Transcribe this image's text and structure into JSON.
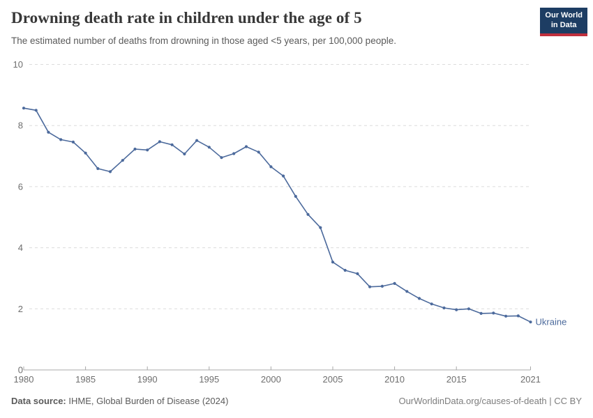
{
  "header": {
    "title": "Drowning death rate in children under the age of 5",
    "subtitle": "The estimated number of deaths from drowning in those aged <5 years, per 100,000 people.",
    "logo": {
      "line1": "Our World",
      "line2": "in Data",
      "bg_color": "#1d3d63",
      "accent_color": "#c0303d"
    }
  },
  "chart_data": {
    "type": "line",
    "title": "Drowning death rate in children under the age of 5",
    "subtitle": "The estimated number of deaths from drowning in those aged <5 years, per 100,000 people.",
    "xlabel": "",
    "ylabel": "",
    "xlim": [
      1980,
      2021
    ],
    "ylim": [
      0,
      10
    ],
    "x_ticks": [
      1980,
      1985,
      1990,
      1995,
      2000,
      2005,
      2010,
      2015,
      2021
    ],
    "y_ticks": [
      0,
      2,
      4,
      6,
      8,
      10
    ],
    "grid": "horizontal-dashed",
    "legend_position": "end-of-line",
    "colors": {
      "grid": "#dcdcdc",
      "axis": "#a8a8a8",
      "tick_text": "#6e6e6e"
    },
    "series": [
      {
        "name": "Ukraine",
        "color": "#4C6A9C",
        "x": [
          1980,
          1981,
          1982,
          1983,
          1984,
          1985,
          1986,
          1987,
          1988,
          1989,
          1990,
          1991,
          1992,
          1993,
          1994,
          1995,
          1996,
          1997,
          1998,
          1999,
          2000,
          2001,
          2002,
          2003,
          2004,
          2005,
          2006,
          2007,
          2008,
          2009,
          2010,
          2011,
          2012,
          2013,
          2014,
          2015,
          2016,
          2017,
          2018,
          2019,
          2020,
          2021
        ],
        "values": [
          8.57,
          8.5,
          7.78,
          7.54,
          7.46,
          7.1,
          6.59,
          6.49,
          6.86,
          7.23,
          7.2,
          7.47,
          7.37,
          7.07,
          7.51,
          7.29,
          6.95,
          7.08,
          7.31,
          7.13,
          6.65,
          6.35,
          5.68,
          5.09,
          4.66,
          3.53,
          3.26,
          3.15,
          2.72,
          2.74,
          2.83,
          2.57,
          2.34,
          2.16,
          2.03,
          1.97,
          2.0,
          1.85,
          1.86,
          1.76,
          1.77,
          1.57
        ]
      }
    ]
  },
  "footer": {
    "source_label": "Data source:",
    "source_text": " IHME, Global Burden of Disease (2024)",
    "credit": "OurWorldinData.org/causes-of-death | CC BY"
  }
}
